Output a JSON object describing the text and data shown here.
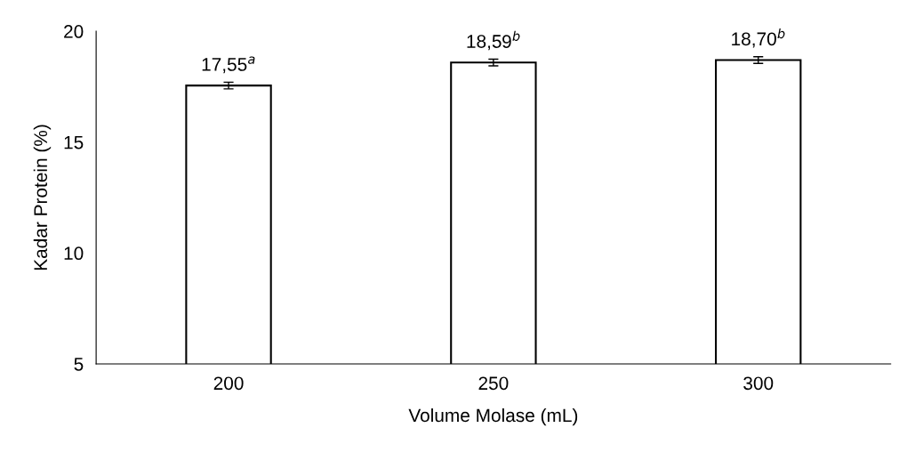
{
  "chart_data": {
    "type": "bar",
    "xlabel": "Volume Molase (mL)",
    "ylabel": "Kadar Protein (%)",
    "categories": [
      "200",
      "250",
      "300"
    ],
    "series": [
      {
        "color": "#ffffff",
        "values": [
          17.55,
          18.59,
          18.7
        ],
        "errors": [
          0.15,
          0.15,
          0.15
        ],
        "value_labels": [
          "17,55$^{a}$",
          "18,59$^{b}$",
          "18,70$^{b}$"
        ]
      }
    ],
    "ylim": [
      5,
      20
    ],
    "yticks": [
      5,
      10,
      15,
      20
    ],
    "grid": false,
    "legend": false
  }
}
